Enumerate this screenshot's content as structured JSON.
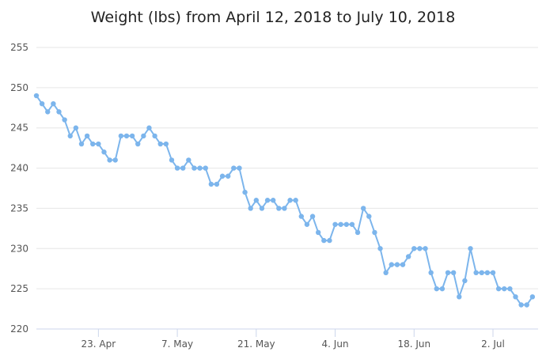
{
  "chart_data": {
    "type": "line",
    "title": "Weight (lbs) from April 12, 2018 to July 10, 2018",
    "xlabel": "",
    "ylabel": "",
    "ylim": [
      220,
      255
    ],
    "xlim": [
      "2018-04-12",
      "2018-07-10"
    ],
    "yticks": [
      220,
      225,
      230,
      235,
      240,
      245,
      250,
      255
    ],
    "xticks": [
      {
        "date": "2018-04-23",
        "label": "23. Apr"
      },
      {
        "date": "2018-05-07",
        "label": "7. May"
      },
      {
        "date": "2018-05-21",
        "label": "21. May"
      },
      {
        "date": "2018-06-04",
        "label": "4. Jun"
      },
      {
        "date": "2018-06-18",
        "label": "18. Jun"
      },
      {
        "date": "2018-07-02",
        "label": "2. Jul"
      }
    ],
    "grid": true,
    "legend": "none",
    "series": [
      {
        "color": "#7cb5ec",
        "points": [
          [
            "2018-04-12",
            249
          ],
          [
            "2018-04-13",
            248
          ],
          [
            "2018-04-14",
            247
          ],
          [
            "2018-04-15",
            248
          ],
          [
            "2018-04-16",
            247
          ],
          [
            "2018-04-17",
            246
          ],
          [
            "2018-04-18",
            244
          ],
          [
            "2018-04-19",
            245
          ],
          [
            "2018-04-20",
            243
          ],
          [
            "2018-04-21",
            244
          ],
          [
            "2018-04-22",
            243
          ],
          [
            "2018-04-23",
            243
          ],
          [
            "2018-04-24",
            242
          ],
          [
            "2018-04-25",
            241
          ],
          [
            "2018-04-26",
            241
          ],
          [
            "2018-04-27",
            244
          ],
          [
            "2018-04-28",
            244
          ],
          [
            "2018-04-29",
            244
          ],
          [
            "2018-04-30",
            243
          ],
          [
            "2018-05-01",
            244
          ],
          [
            "2018-05-02",
            245
          ],
          [
            "2018-05-03",
            244
          ],
          [
            "2018-05-04",
            243
          ],
          [
            "2018-05-05",
            243
          ],
          [
            "2018-05-06",
            241
          ],
          [
            "2018-05-07",
            240
          ],
          [
            "2018-05-08",
            240
          ],
          [
            "2018-05-09",
            241
          ],
          [
            "2018-05-10",
            240
          ],
          [
            "2018-05-11",
            240
          ],
          [
            "2018-05-12",
            240
          ],
          [
            "2018-05-13",
            238
          ],
          [
            "2018-05-14",
            238
          ],
          [
            "2018-05-15",
            239
          ],
          [
            "2018-05-16",
            239
          ],
          [
            "2018-05-17",
            240
          ],
          [
            "2018-05-18",
            240
          ],
          [
            "2018-05-19",
            237
          ],
          [
            "2018-05-20",
            235
          ],
          [
            "2018-05-21",
            236
          ],
          [
            "2018-05-22",
            235
          ],
          [
            "2018-05-23",
            236
          ],
          [
            "2018-05-24",
            236
          ],
          [
            "2018-05-25",
            235
          ],
          [
            "2018-05-26",
            235
          ],
          [
            "2018-05-27",
            236
          ],
          [
            "2018-05-28",
            236
          ],
          [
            "2018-05-29",
            234
          ],
          [
            "2018-05-30",
            233
          ],
          [
            "2018-05-31",
            234
          ],
          [
            "2018-06-01",
            232
          ],
          [
            "2018-06-02",
            231
          ],
          [
            "2018-06-03",
            231
          ],
          [
            "2018-06-04",
            233
          ],
          [
            "2018-06-05",
            233
          ],
          [
            "2018-06-06",
            233
          ],
          [
            "2018-06-07",
            233
          ],
          [
            "2018-06-08",
            232
          ],
          [
            "2018-06-09",
            235
          ],
          [
            "2018-06-10",
            234
          ],
          [
            "2018-06-11",
            232
          ],
          [
            "2018-06-12",
            230
          ],
          [
            "2018-06-13",
            227
          ],
          [
            "2018-06-14",
            228
          ],
          [
            "2018-06-15",
            228
          ],
          [
            "2018-06-16",
            228
          ],
          [
            "2018-06-17",
            229
          ],
          [
            "2018-06-18",
            230
          ],
          [
            "2018-06-19",
            230
          ],
          [
            "2018-06-20",
            230
          ],
          [
            "2018-06-21",
            227
          ],
          [
            "2018-06-22",
            225
          ],
          [
            "2018-06-23",
            225
          ],
          [
            "2018-06-24",
            227
          ],
          [
            "2018-06-25",
            227
          ],
          [
            "2018-06-26",
            224
          ],
          [
            "2018-06-27",
            226
          ],
          [
            "2018-06-28",
            230
          ],
          [
            "2018-06-29",
            227
          ],
          [
            "2018-06-30",
            227
          ],
          [
            "2018-07-01",
            227
          ],
          [
            "2018-07-02",
            227
          ],
          [
            "2018-07-03",
            225
          ],
          [
            "2018-07-04",
            225
          ],
          [
            "2018-07-05",
            225
          ],
          [
            "2018-07-06",
            224
          ],
          [
            "2018-07-07",
            223
          ],
          [
            "2018-07-08",
            223
          ],
          [
            "2018-07-09",
            224
          ]
        ]
      }
    ]
  },
  "colors": {
    "line": "#7cb5ec",
    "grid": "#e6e6e6",
    "axis": "#ccd6eb",
    "title": "#222222",
    "tick_text": "#555555"
  }
}
